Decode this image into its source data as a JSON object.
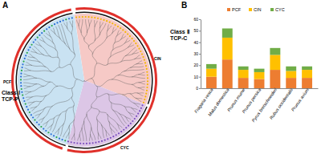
{
  "panel_labels": [
    "A",
    "B"
  ],
  "tree": {
    "classes": [
      {
        "name": "Class Ⅱ",
        "subtitle": "TCP-C"
      },
      {
        "name": "Class Ⅰ",
        "subtitle": "TCP-P"
      }
    ],
    "subfamilies": [
      "CIN",
      "CYC",
      "PCF"
    ]
  },
  "chart_data": {
    "type": "bar",
    "stacked": true,
    "legend": "top",
    "categories": [
      "Fragaria vesca",
      "Malus domestica",
      "Prunus mume",
      "Prunus persica",
      "Pyrus bretschneideri",
      "Rubus occidentalis",
      "Prunus avium"
    ],
    "series": [
      {
        "name": "PCF",
        "color": "#ed7d31",
        "values": [
          10,
          25,
          9,
          8,
          16,
          9,
          9
        ]
      },
      {
        "name": "CIN",
        "color": "#ffc000",
        "values": [
          7,
          19,
          7,
          6,
          13,
          6,
          7
        ]
      },
      {
        "name": "CYC",
        "color": "#70ad47",
        "values": [
          4,
          8,
          3,
          3,
          6,
          4,
          3
        ]
      }
    ],
    "ylim": [
      0,
      60
    ],
    "yticks": [
      0,
      10,
      20,
      30,
      40,
      50,
      60
    ]
  }
}
